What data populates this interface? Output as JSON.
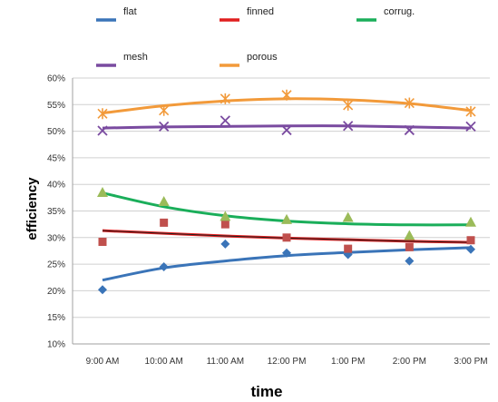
{
  "chart_data": {
    "type": "line",
    "xlabel": "time",
    "ylabel": "efficiency",
    "categories": [
      "9:00 AM",
      "10:00 AM",
      "11:00 AM",
      "12:00 PM",
      "1:00 PM",
      "2:00 PM",
      "3:00 PM"
    ],
    "ylim": [
      10,
      60
    ],
    "yticks": [
      "10%",
      "15%",
      "20%",
      "25%",
      "30%",
      "35%",
      "40%",
      "45%",
      "50%",
      "55%",
      "60%"
    ],
    "grid": true,
    "legend_placement": "top",
    "series": [
      {
        "name": "flat",
        "color": "#3A74B8",
        "marker": "diamond",
        "values": [
          20.2,
          24.5,
          28.8,
          27.1,
          26.8,
          25.6,
          27.8
        ],
        "trend": [
          22.0,
          24.3,
          25.6,
          26.6,
          27.2,
          27.7,
          28.1
        ]
      },
      {
        "name": "finned",
        "color": "#E01E1E",
        "marker": "square",
        "values": [
          29.2,
          32.8,
          32.5,
          30.0,
          27.9,
          28.2,
          29.5
        ],
        "trend": [
          31.3,
          30.8,
          30.3,
          29.9,
          29.6,
          29.3,
          29.1
        ]
      },
      {
        "name": "corrug.",
        "color": "#1AAE5A",
        "marker": "triangle",
        "values": [
          38.5,
          36.8,
          34.0,
          33.4,
          33.8,
          30.4,
          32.9
        ],
        "trend": [
          38.4,
          35.8,
          34.1,
          33.1,
          32.6,
          32.4,
          32.4
        ]
      },
      {
        "name": "mesh",
        "color": "#7A4BA0",
        "marker": "x",
        "values": [
          50.1,
          50.9,
          52.0,
          50.2,
          51.0,
          50.2,
          50.9
        ],
        "trend": [
          50.6,
          50.8,
          50.9,
          51.0,
          51.0,
          50.8,
          50.6
        ]
      },
      {
        "name": "porous",
        "color": "#F29A3A",
        "marker": "star",
        "values": [
          53.3,
          53.9,
          56.1,
          56.8,
          54.9,
          55.3,
          53.7
        ],
        "trend": [
          53.4,
          54.8,
          55.7,
          56.1,
          55.9,
          55.2,
          53.9
        ]
      }
    ]
  }
}
